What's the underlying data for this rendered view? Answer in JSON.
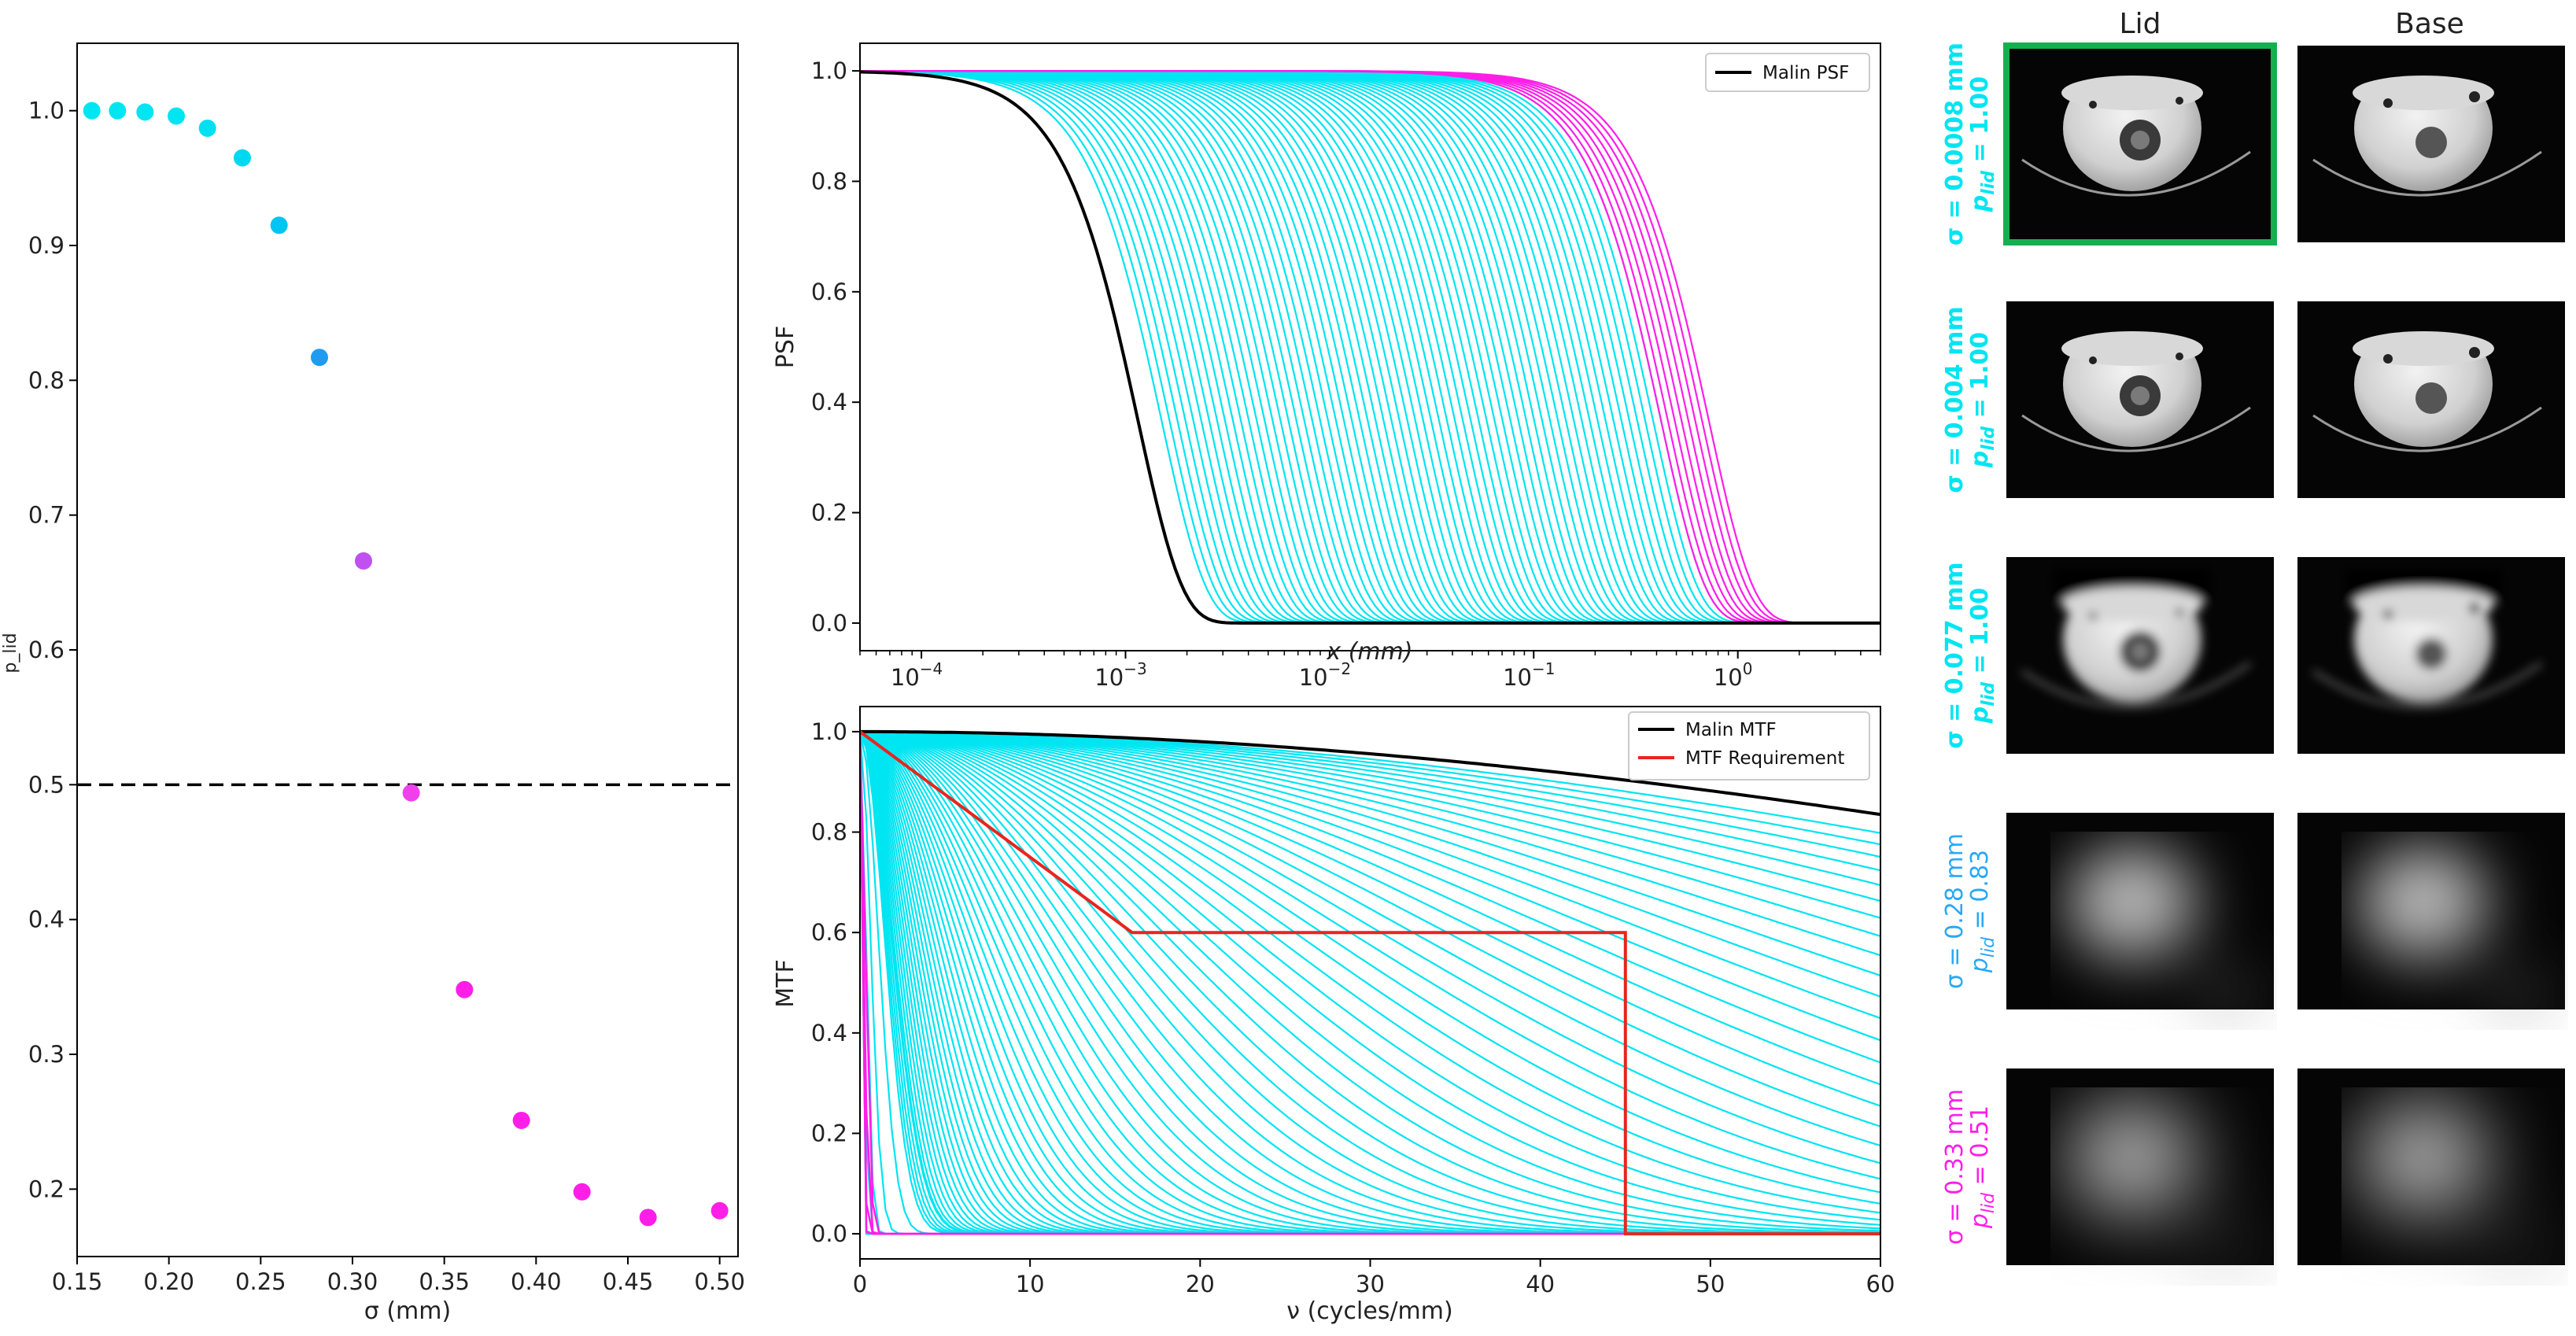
{
  "colors": {
    "cyan": "#00e5f2",
    "blue": "#29a8f5",
    "violet": "#c050f0",
    "magenta": "#ff1ee8",
    "black": "#000000",
    "red": "#e8251e",
    "green": "#14b050"
  },
  "chart_data": [
    {
      "type": "scatter",
      "xlabel": "σ (mm)",
      "ylabel": "p_lid",
      "xlim": [
        0.15,
        0.51
      ],
      "ylim": [
        0.15,
        1.05
      ],
      "xticks": [
        "0.15",
        "0.20",
        "0.25",
        "0.30",
        "0.35",
        "0.40",
        "0.45",
        "0.50"
      ],
      "yticks": [
        "0.2",
        "0.3",
        "0.4",
        "0.5",
        "0.6",
        "0.7",
        "0.8",
        "0.9",
        "1.0"
      ],
      "threshold": 0.5,
      "points": [
        {
          "x": 0.158,
          "y": 1.0,
          "c": "#00e5f2"
        },
        {
          "x": 0.172,
          "y": 1.0,
          "c": "#00e5f2"
        },
        {
          "x": 0.187,
          "y": 0.999,
          "c": "#00e5f2"
        },
        {
          "x": 0.204,
          "y": 0.996,
          "c": "#00e5f2"
        },
        {
          "x": 0.221,
          "y": 0.987,
          "c": "#00e0f2"
        },
        {
          "x": 0.24,
          "y": 0.965,
          "c": "#00d8f2"
        },
        {
          "x": 0.26,
          "y": 0.915,
          "c": "#00c4f2"
        },
        {
          "x": 0.282,
          "y": 0.817,
          "c": "#1f9cf0"
        },
        {
          "x": 0.306,
          "y": 0.666,
          "c": "#c050f0"
        },
        {
          "x": 0.332,
          "y": 0.494,
          "c": "#f040ee"
        },
        {
          "x": 0.361,
          "y": 0.348,
          "c": "#ff1ee8"
        },
        {
          "x": 0.392,
          "y": 0.251,
          "c": "#ff1ee8"
        },
        {
          "x": 0.425,
          "y": 0.198,
          "c": "#ff1ee8"
        },
        {
          "x": 0.461,
          "y": 0.179,
          "c": "#ff1ee8"
        },
        {
          "x": 0.5,
          "y": 0.184,
          "c": "#ff1ee8"
        }
      ]
    },
    {
      "type": "line",
      "xlabel": "x (mm)",
      "ylabel": "PSF",
      "xscale": "log",
      "xlim": [
        5e-05,
        5
      ],
      "ylim": [
        -0.05,
        1.05
      ],
      "xticks": [
        0.0001,
        0.001,
        0.01,
        0.1,
        1
      ],
      "xtick_labels": [
        "10",
        "10",
        "10",
        "10",
        "10"
      ],
      "xtick_exps": [
        "−4",
        "−3",
        "−2",
        "−1",
        "0"
      ],
      "yticks": [
        "0.0",
        "0.2",
        "0.4",
        "0.6",
        "0.8",
        "1.0"
      ],
      "legend": [
        "Malin PSF"
      ],
      "legend_position": "upper right",
      "family": {
        "cyan_half_widths_mm": [
          0.0015,
          0.42
        ],
        "magenta_half_widths_mm": [
          0.42,
          0.72
        ],
        "cyan_count": 64,
        "magenta_count": 8
      },
      "malin_half_width_mm": 0.00115
    },
    {
      "type": "line",
      "xlabel": "ν (cycles/mm)",
      "ylabel": "MTF",
      "xlim": [
        0,
        60
      ],
      "ylim": [
        -0.05,
        1.05
      ],
      "xticks": [
        "0",
        "10",
        "20",
        "30",
        "40",
        "50",
        "60"
      ],
      "yticks": [
        "0.0",
        "0.2",
        "0.4",
        "0.6",
        "0.8",
        "1.0"
      ],
      "legend": [
        "Malin MTF",
        "MTF Requirement"
      ],
      "legend_position": "upper right",
      "malin_mtf_at_60": 0.835,
      "requirement": {
        "x": [
          0,
          16,
          45,
          45,
          60
        ],
        "y": [
          1.0,
          0.6,
          0.6,
          0.0,
          0.0
        ]
      }
    }
  ],
  "images": {
    "col_titles": [
      "Lid",
      "Base"
    ],
    "rows": [
      {
        "sigma": "σ =  0.0008 mm",
        "p": "p",
        "psub": "lid",
        "pval": " = 1.00",
        "color": "#00e5f2"
      },
      {
        "sigma": "σ =  0.004 mm",
        "p": "p",
        "psub": "lid",
        "pval": " = 1.00",
        "color": "#00e5f2"
      },
      {
        "sigma": "σ =  0.077 mm",
        "p": "p",
        "psub": "lid",
        "pval": " = 1.00",
        "color": "#00e5f2"
      },
      {
        "sigma": "σ =  0.28 mm",
        "p": "p",
        "psub": "lid",
        "pval": " = 0.83",
        "color": "#29a8f5"
      },
      {
        "sigma": "σ =  0.33 mm",
        "p": "p",
        "psub": "lid",
        "pval": " = 0.51",
        "color": "#ff1ee8"
      }
    ]
  }
}
